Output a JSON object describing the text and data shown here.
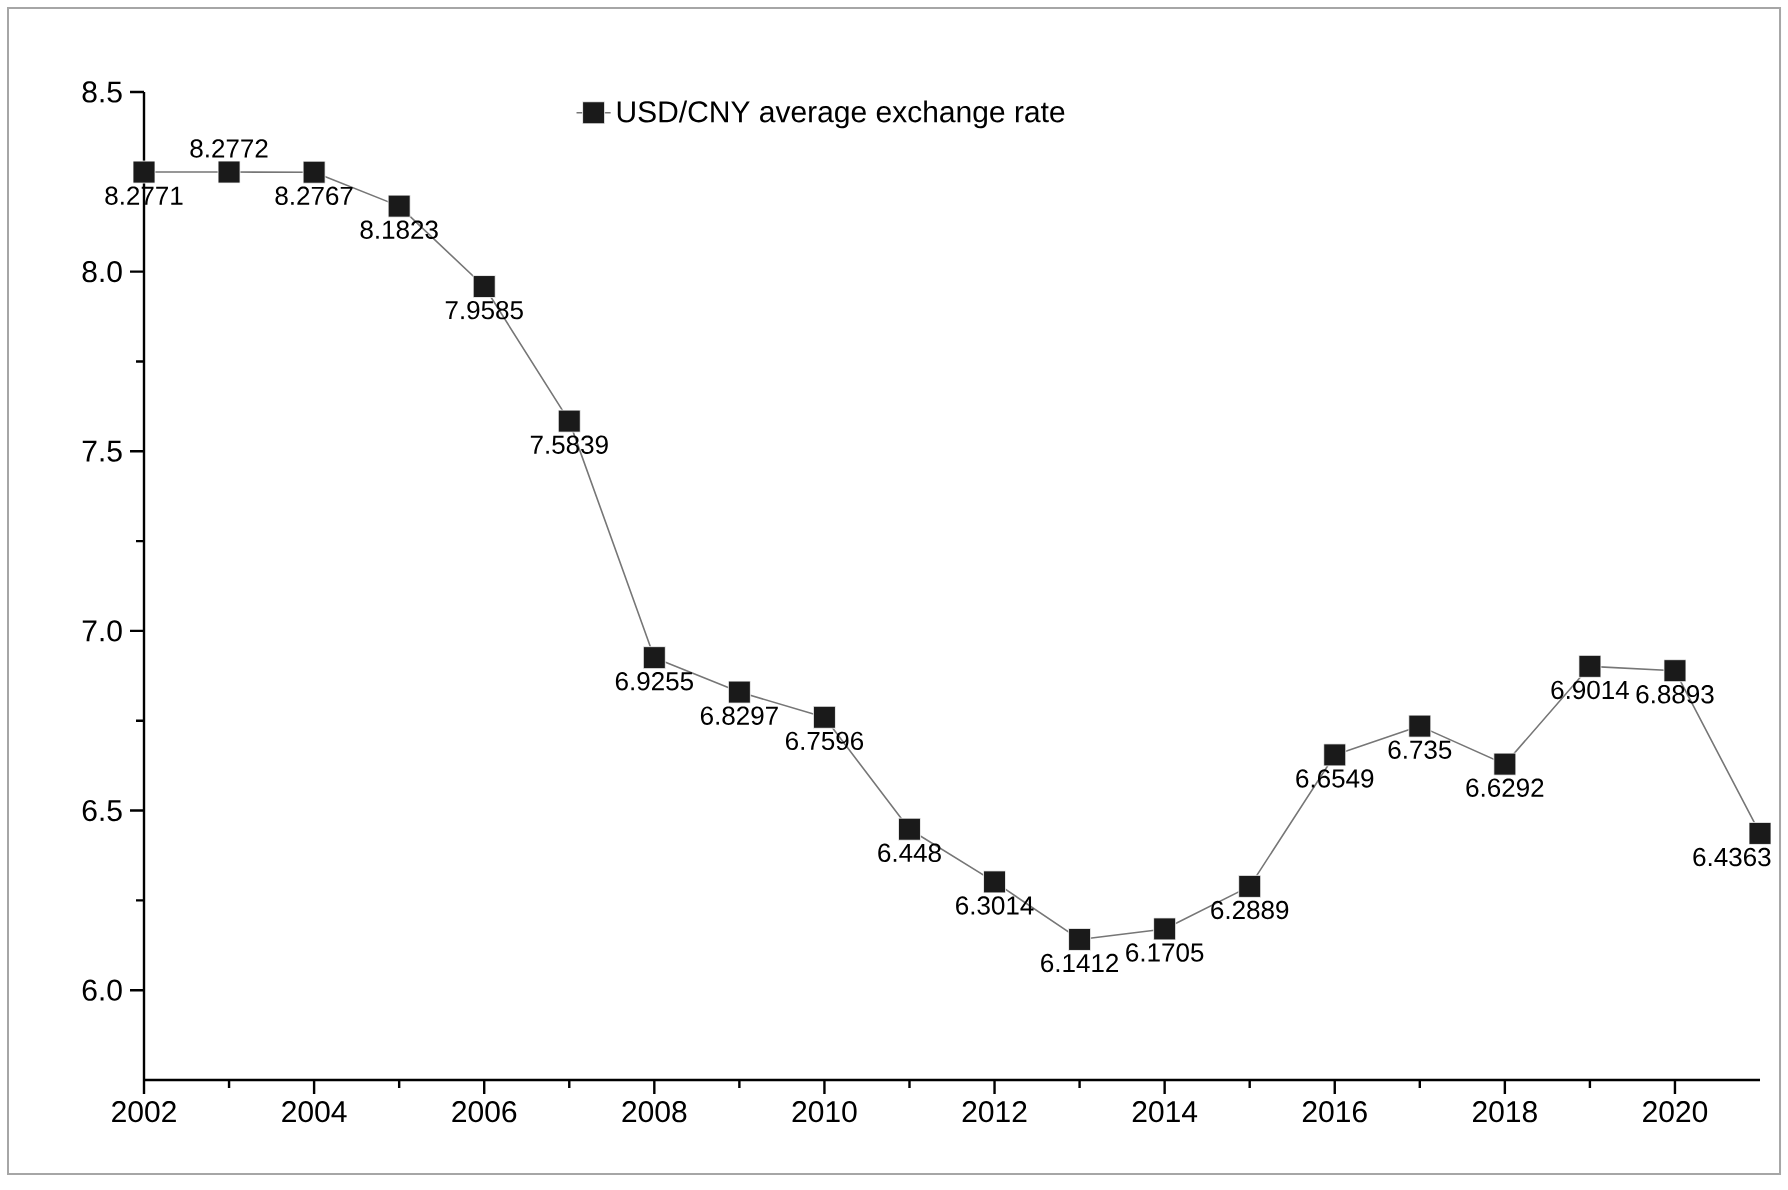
{
  "chart_data": {
    "type": "line",
    "x": [
      2002,
      2003,
      2004,
      2005,
      2006,
      2007,
      2008,
      2009,
      2010,
      2011,
      2012,
      2013,
      2014,
      2015,
      2016,
      2017,
      2018,
      2019,
      2020,
      2021
    ],
    "series": [
      {
        "name": "USD/CNY average exchange rate",
        "color": "#1a1a1a",
        "values": [
          8.2771,
          8.2772,
          8.2767,
          8.1823,
          7.9585,
          7.5839,
          6.9255,
          6.8297,
          6.7596,
          6.448,
          6.3014,
          6.1412,
          6.1705,
          6.2889,
          6.6549,
          6.735,
          6.6292,
          6.9014,
          6.8893,
          6.4363
        ]
      }
    ],
    "xlim": [
      2002,
      2021
    ],
    "xticks": [
      2002,
      2004,
      2006,
      2008,
      2010,
      2012,
      2014,
      2016,
      2018,
      2020
    ],
    "ylim": [
      5.75,
      8.5
    ],
    "yticks": [
      {
        "value": 6,
        "label": "6.0"
      },
      {
        "value": 6.5,
        "label": "6.5"
      },
      {
        "value": 7,
        "label": "7.0"
      },
      {
        "value": 7.5,
        "label": "7.5"
      },
      {
        "value": 8,
        "label": "8.0"
      },
      {
        "value": 8.5,
        "label": "8.5"
      }
    ],
    "data_labels": true,
    "marker": "square",
    "line_style": "solid",
    "legend": "top",
    "grid": false
  }
}
